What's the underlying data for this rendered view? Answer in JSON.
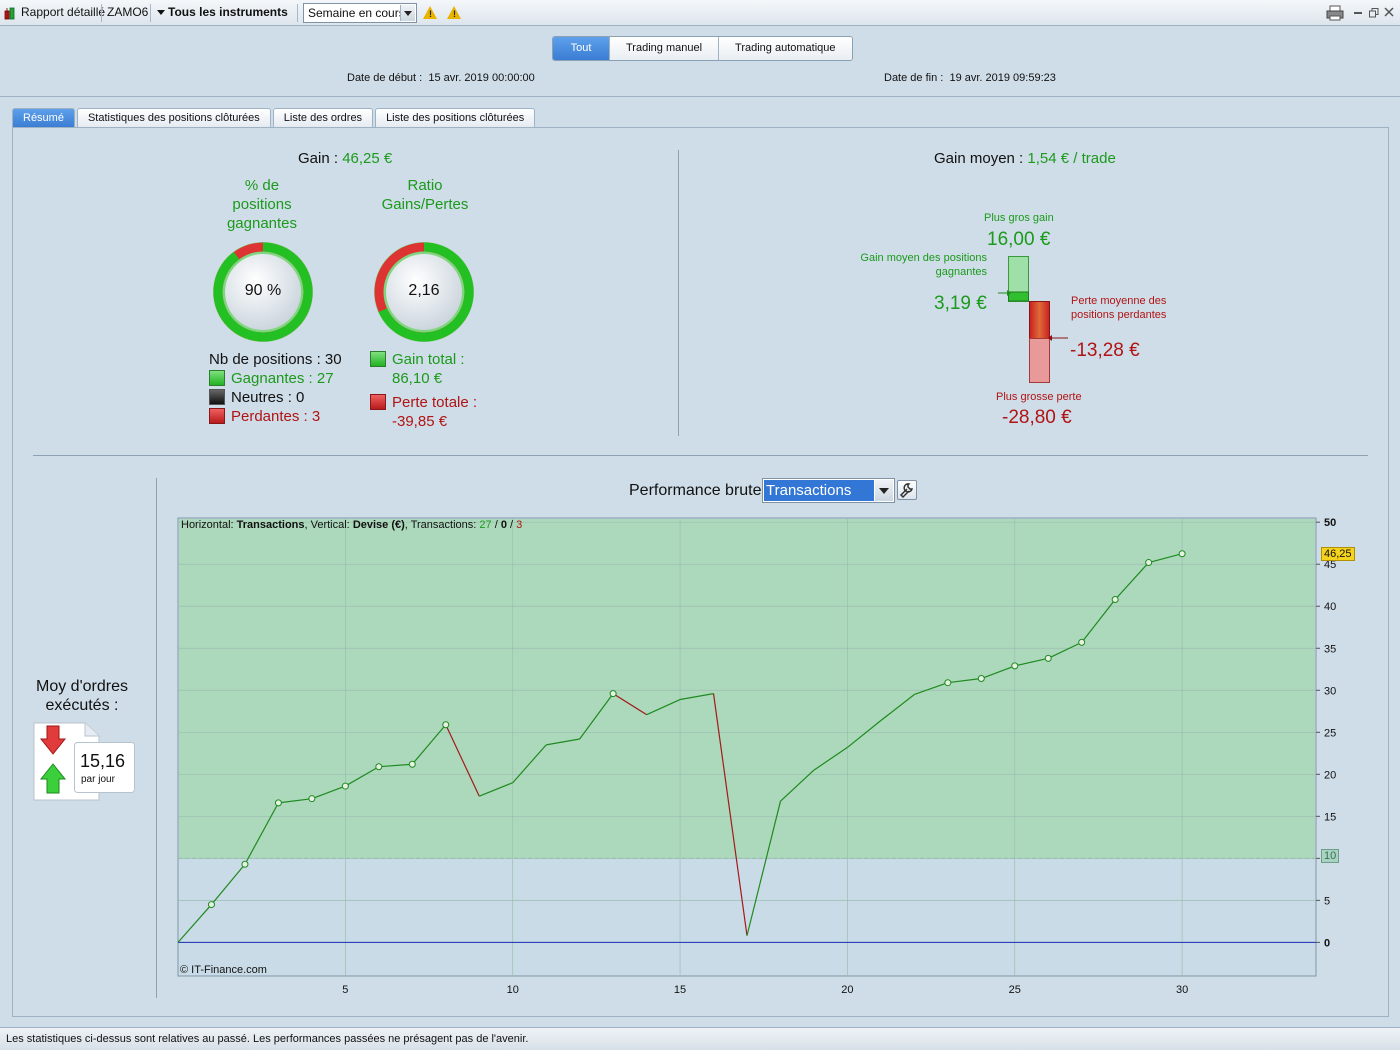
{
  "toolbar": {
    "report_label": "Rapport détaillé",
    "account": "ZAMO6",
    "instruments": "Tous les instruments",
    "period": "Semaine en cours"
  },
  "modes": [
    "Tout",
    "Trading manuel",
    "Trading automatique"
  ],
  "dates": {
    "start_label": "Date de début :",
    "start_value": "15 avr. 2019 00:00:00",
    "end_label": "Date de fin :",
    "end_value": "19 avr. 2019 09:59:23"
  },
  "tabs": [
    "Résumé",
    "Statistiques des positions clôturées",
    "Liste des ordres",
    "Liste des positions clôturées"
  ],
  "summary": {
    "gain_label": "Gain :",
    "gain_value": "46,25 €",
    "pct_title_1": "% de",
    "pct_title_2": "positions",
    "pct_title_3": "gagnantes",
    "pct_value": "90 %",
    "pct_fraction": 0.9,
    "ratio_title_1": "Ratio",
    "ratio_title_2": "Gains/Pertes",
    "ratio_value": "2,16",
    "ratio_fraction": 0.684,
    "nb_positions": "Nb de positions : 30",
    "gagnantes": "Gagnantes : 27",
    "neutres": "Neutres : 0",
    "perdantes": "Perdantes : 3",
    "gain_total_label": "Gain total :",
    "gain_total_value": "86,10 €",
    "perte_totale_label": "Perte totale :",
    "perte_totale_value": "-39,85 €"
  },
  "average": {
    "label": "Gain moyen :",
    "value": "1,54 € / trade",
    "biggest_gain_label": "Plus gros gain",
    "biggest_gain_value": "16,00 €",
    "avg_win_label_1": "Gain moyen des positions",
    "avg_win_label_2": "gagnantes",
    "avg_win_value": "3,19 €",
    "avg_loss_label_1": "Perte moyenne des",
    "avg_loss_label_2": "positions perdantes",
    "avg_loss_value": "-13,28 €",
    "biggest_loss_label": "Plus grosse perte",
    "biggest_loss_value": "-28,80 €"
  },
  "orders": {
    "title_1": "Moy d'ordres",
    "title_2": "exécutés :",
    "value": "15,16",
    "unit": "par jour"
  },
  "performance": {
    "title": "Performance brute",
    "select_value": "Transactions",
    "info_prefix": "Horizontal:",
    "info_h": "Transactions",
    "info_mid": ", Vertical:",
    "info_v": "Devise (€)",
    "info_tx": ", Transactions:",
    "info_win": "27",
    "info_slash1": " / ",
    "info_neutral": "0",
    "info_slash2": " / ",
    "info_loss": "3",
    "copyright": "© IT-Finance.com",
    "last_value_label": "46,25",
    "threshold_label": "10"
  },
  "chart_data": {
    "type": "line",
    "x": [
      0,
      1,
      2,
      3,
      4,
      5,
      6,
      7,
      8,
      9,
      10,
      11,
      12,
      13,
      14,
      15,
      16,
      17,
      18,
      19,
      20,
      21,
      22,
      23,
      24,
      25,
      26,
      27,
      28,
      29,
      30
    ],
    "y": [
      0,
      4.5,
      9.3,
      16.6,
      17.1,
      18.6,
      20.9,
      21.2,
      25.9,
      17.4,
      19,
      23.5,
      24.2,
      29.6,
      27.1,
      28.9,
      29.6,
      0.8,
      16.8,
      20.5,
      23.2,
      26.4,
      29.5,
      30.9,
      31.4,
      32.9,
      33.8,
      35.7,
      40.8,
      45.2,
      46.25
    ],
    "segment_colors": [
      "green",
      "green",
      "green",
      "green",
      "green",
      "green",
      "green",
      "green",
      "red",
      "green",
      "green",
      "green",
      "green",
      "red",
      "green",
      "green",
      "red",
      "green",
      "green",
      "green",
      "green",
      "green",
      "green",
      "green",
      "green",
      "green",
      "green",
      "green",
      "green",
      "green"
    ],
    "markers": [
      1,
      2,
      3,
      4,
      5,
      6,
      7,
      8,
      13,
      23,
      24,
      25,
      26,
      27,
      28,
      29,
      30
    ],
    "xlabel": "Transactions",
    "ylabel": "Devise (€)",
    "xlim": [
      0,
      34
    ],
    "ylim": [
      -4,
      50.5
    ],
    "xticks": [
      5,
      10,
      15,
      20,
      25,
      30
    ],
    "yticks": [
      0,
      5,
      10,
      15,
      20,
      25,
      30,
      35,
      40,
      45,
      50
    ],
    "threshold": 10,
    "colors": {
      "profit_zone": "#acd9bb",
      "base_zone": "#c9dbe6",
      "gain_line": "#1f8a1f",
      "loss_line": "#a31a1a",
      "zero_line": "#1a2fb8"
    }
  },
  "status": "Les statistiques ci-dessus sont relatives au passé. Les performances passées ne présagent pas de l'avenir."
}
